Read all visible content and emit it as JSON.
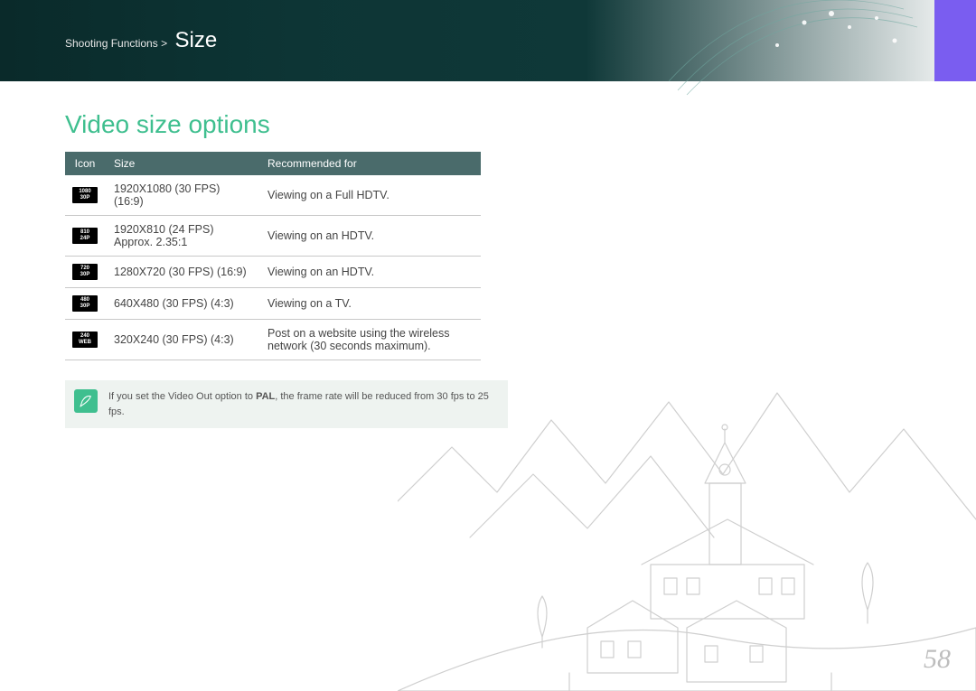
{
  "banner": {
    "breadcrumb_parent": "Shooting Functions >",
    "breadcrumb_current": "Size",
    "bg_gradient_from": "#0a2a2a",
    "bg_gradient_to": "#ffffff",
    "accent_tab_color": "#7a5df0"
  },
  "section": {
    "title": "Video size options",
    "title_color": "#3fbf8f"
  },
  "table": {
    "header_bg": "#4a6b6b",
    "header_text_color": "#ffffff",
    "border_color": "#c8c8c8",
    "columns": [
      "Icon",
      "Size",
      "Recommended for"
    ],
    "rows": [
      {
        "icon_top": "1080",
        "icon_bottom": "30P",
        "size": "1920X1080 (30 FPS) (16:9)",
        "rec": "Viewing on a Full HDTV."
      },
      {
        "icon_top": "810",
        "icon_bottom": "24P",
        "size": "1920X810 (24 FPS)\nApprox. 2.35:1",
        "rec": "Viewing on an HDTV."
      },
      {
        "icon_top": "720",
        "icon_bottom": "30P",
        "size": "1280X720 (30 FPS) (16:9)",
        "rec": "Viewing on an HDTV."
      },
      {
        "icon_top": "480",
        "icon_bottom": "30P",
        "size": "640X480 (30 FPS) (4:3)",
        "rec": "Viewing on a TV."
      },
      {
        "icon_top": "240",
        "icon_bottom": "WEB",
        "size": "320X240 (30 FPS) (4:3)",
        "rec": "Post on a website using the wireless network (30 seconds maximum)."
      }
    ]
  },
  "note": {
    "box_bg": "#eef3f0",
    "icon_bg": "#3fbf8f",
    "text_pre": "If you set the Video Out option to ",
    "text_bold": "PAL",
    "text_post": ", the frame rate will be reduced from 30 fps to 25 fps."
  },
  "page_number": "58",
  "landscape": {
    "stroke": "#cfcfcf"
  }
}
